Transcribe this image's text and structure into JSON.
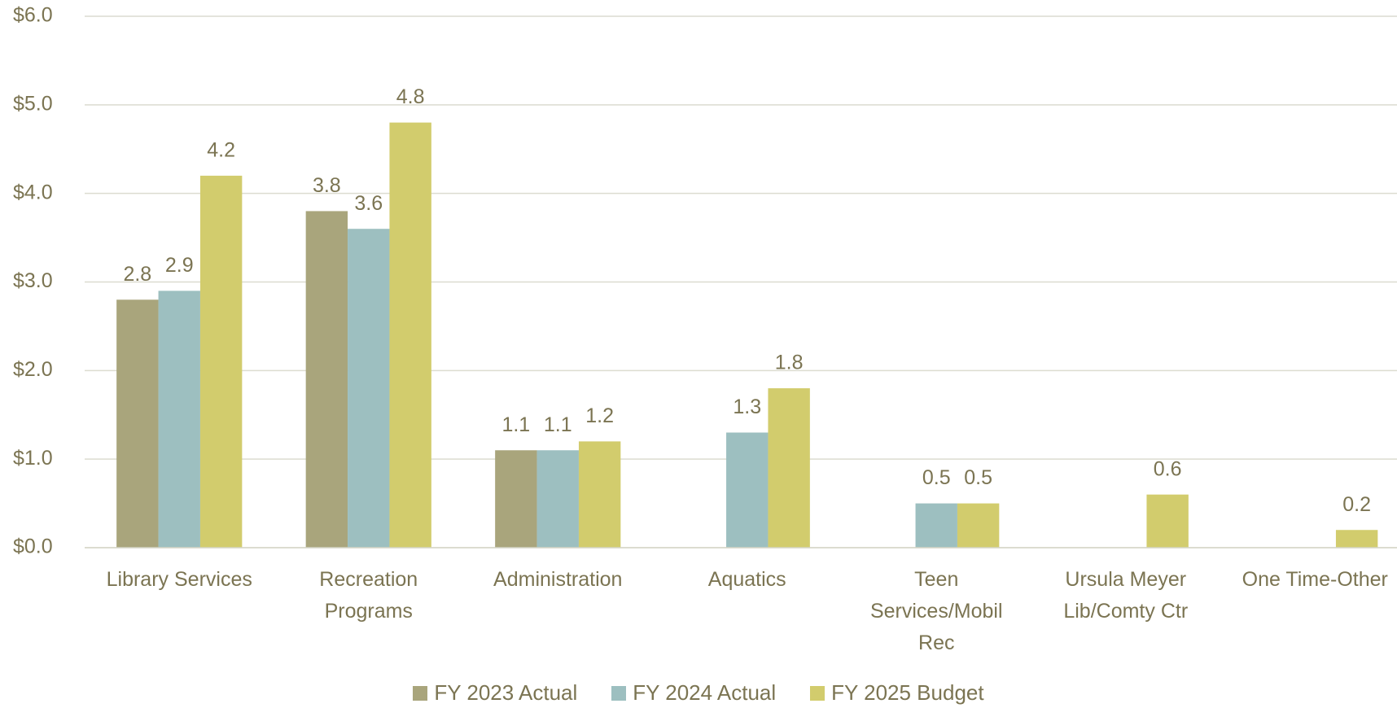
{
  "chart_data": {
    "type": "bar",
    "categories": [
      "Library Services",
      "Recreation Programs",
      "Administration",
      "Aquatics",
      "Teen Services/Mobil Rec",
      "Ursula Meyer Lib/Comty Ctr",
      "One Time-Other"
    ],
    "series": [
      {
        "name": "FY 2023 Actual",
        "color": "#a9a57c",
        "values": [
          2.8,
          3.8,
          1.1,
          null,
          null,
          null,
          null
        ]
      },
      {
        "name": "FY 2024 Actual",
        "color": "#9dbfc0",
        "values": [
          2.9,
          3.6,
          1.1,
          1.3,
          0.5,
          null,
          null
        ]
      },
      {
        "name": "FY 2025 Budget",
        "color": "#d2cc6d",
        "values": [
          4.2,
          4.8,
          1.2,
          1.8,
          0.5,
          0.6,
          0.2
        ]
      }
    ],
    "ylim": [
      0,
      6
    ],
    "yticks": [
      {
        "value": 0,
        "label": "$0.0"
      },
      {
        "value": 1,
        "label": "$1.0"
      },
      {
        "value": 2,
        "label": "$2.0"
      },
      {
        "value": 3,
        "label": "$3.0"
      },
      {
        "value": 4,
        "label": "$4.0"
      },
      {
        "value": 5,
        "label": "$5.0"
      },
      {
        "value": 6,
        "label": "$6.0"
      }
    ],
    "grid": true,
    "legend": "bottom"
  }
}
